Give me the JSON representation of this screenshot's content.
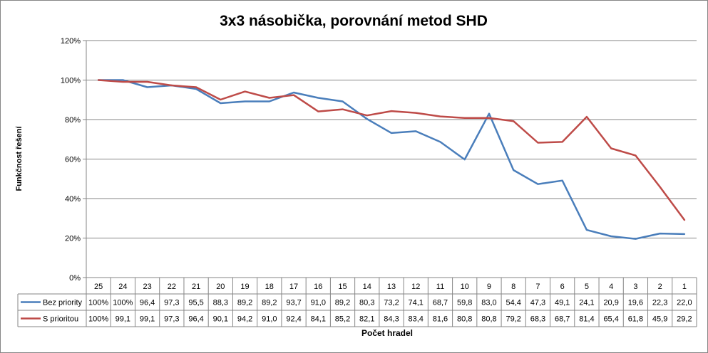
{
  "chart_data": {
    "type": "line",
    "title": "3x3 násobička, porovnání metod SHD",
    "xlabel": "Počet hradel",
    "ylabel": "Funkčnost řešení",
    "ylim": [
      0,
      1.2
    ],
    "yticks": [
      "0%",
      "20%",
      "40%",
      "60%",
      "80%",
      "100%",
      "120%"
    ],
    "grid": true,
    "legend": "data-table",
    "categories": [
      "25",
      "24",
      "23",
      "22",
      "21",
      "20",
      "19",
      "18",
      "17",
      "16",
      "15",
      "14",
      "13",
      "12",
      "11",
      "10",
      "9",
      "8",
      "7",
      "6",
      "5",
      "4",
      "3",
      "2",
      "1"
    ],
    "series": [
      {
        "name": "Bez priority",
        "color": "#4a7ebb",
        "labels": [
          "100%",
          "100%",
          "96,4",
          "97,3",
          "95,5",
          "88,3",
          "89,2",
          "89,2",
          "93,7",
          "91,0",
          "89,2",
          "80,3",
          "73,2",
          "74,1",
          "68,7",
          "59,8",
          "83,0",
          "54,4",
          "47,3",
          "49,1",
          "24,1",
          "20,9",
          "19,6",
          "22,3",
          "22,0"
        ],
        "values": [
          100,
          100,
          96.4,
          97.3,
          95.5,
          88.3,
          89.2,
          89.2,
          93.7,
          91.0,
          89.2,
          80.3,
          73.2,
          74.1,
          68.7,
          59.8,
          83.0,
          54.4,
          47.3,
          49.1,
          24.1,
          20.9,
          19.6,
          22.3,
          22.0
        ]
      },
      {
        "name": "S prioritou",
        "color": "#be4b48",
        "labels": [
          "100%",
          "99,1",
          "99,1",
          "97,3",
          "96,4",
          "90,1",
          "94,2",
          "91,0",
          "92,4",
          "84,1",
          "85,2",
          "82,1",
          "84,3",
          "83,4",
          "81,6",
          "80,8",
          "80,8",
          "79,2",
          "68,3",
          "68,7",
          "81,4",
          "65,4",
          "61,8",
          "45,9",
          "29,2"
        ],
        "values": [
          100,
          99.1,
          99.1,
          97.3,
          96.4,
          90.1,
          94.2,
          91.0,
          92.4,
          84.1,
          85.2,
          82.1,
          84.3,
          83.4,
          81.6,
          80.8,
          80.8,
          79.2,
          68.3,
          68.7,
          81.4,
          65.4,
          61.8,
          45.9,
          29.2
        ]
      }
    ]
  }
}
